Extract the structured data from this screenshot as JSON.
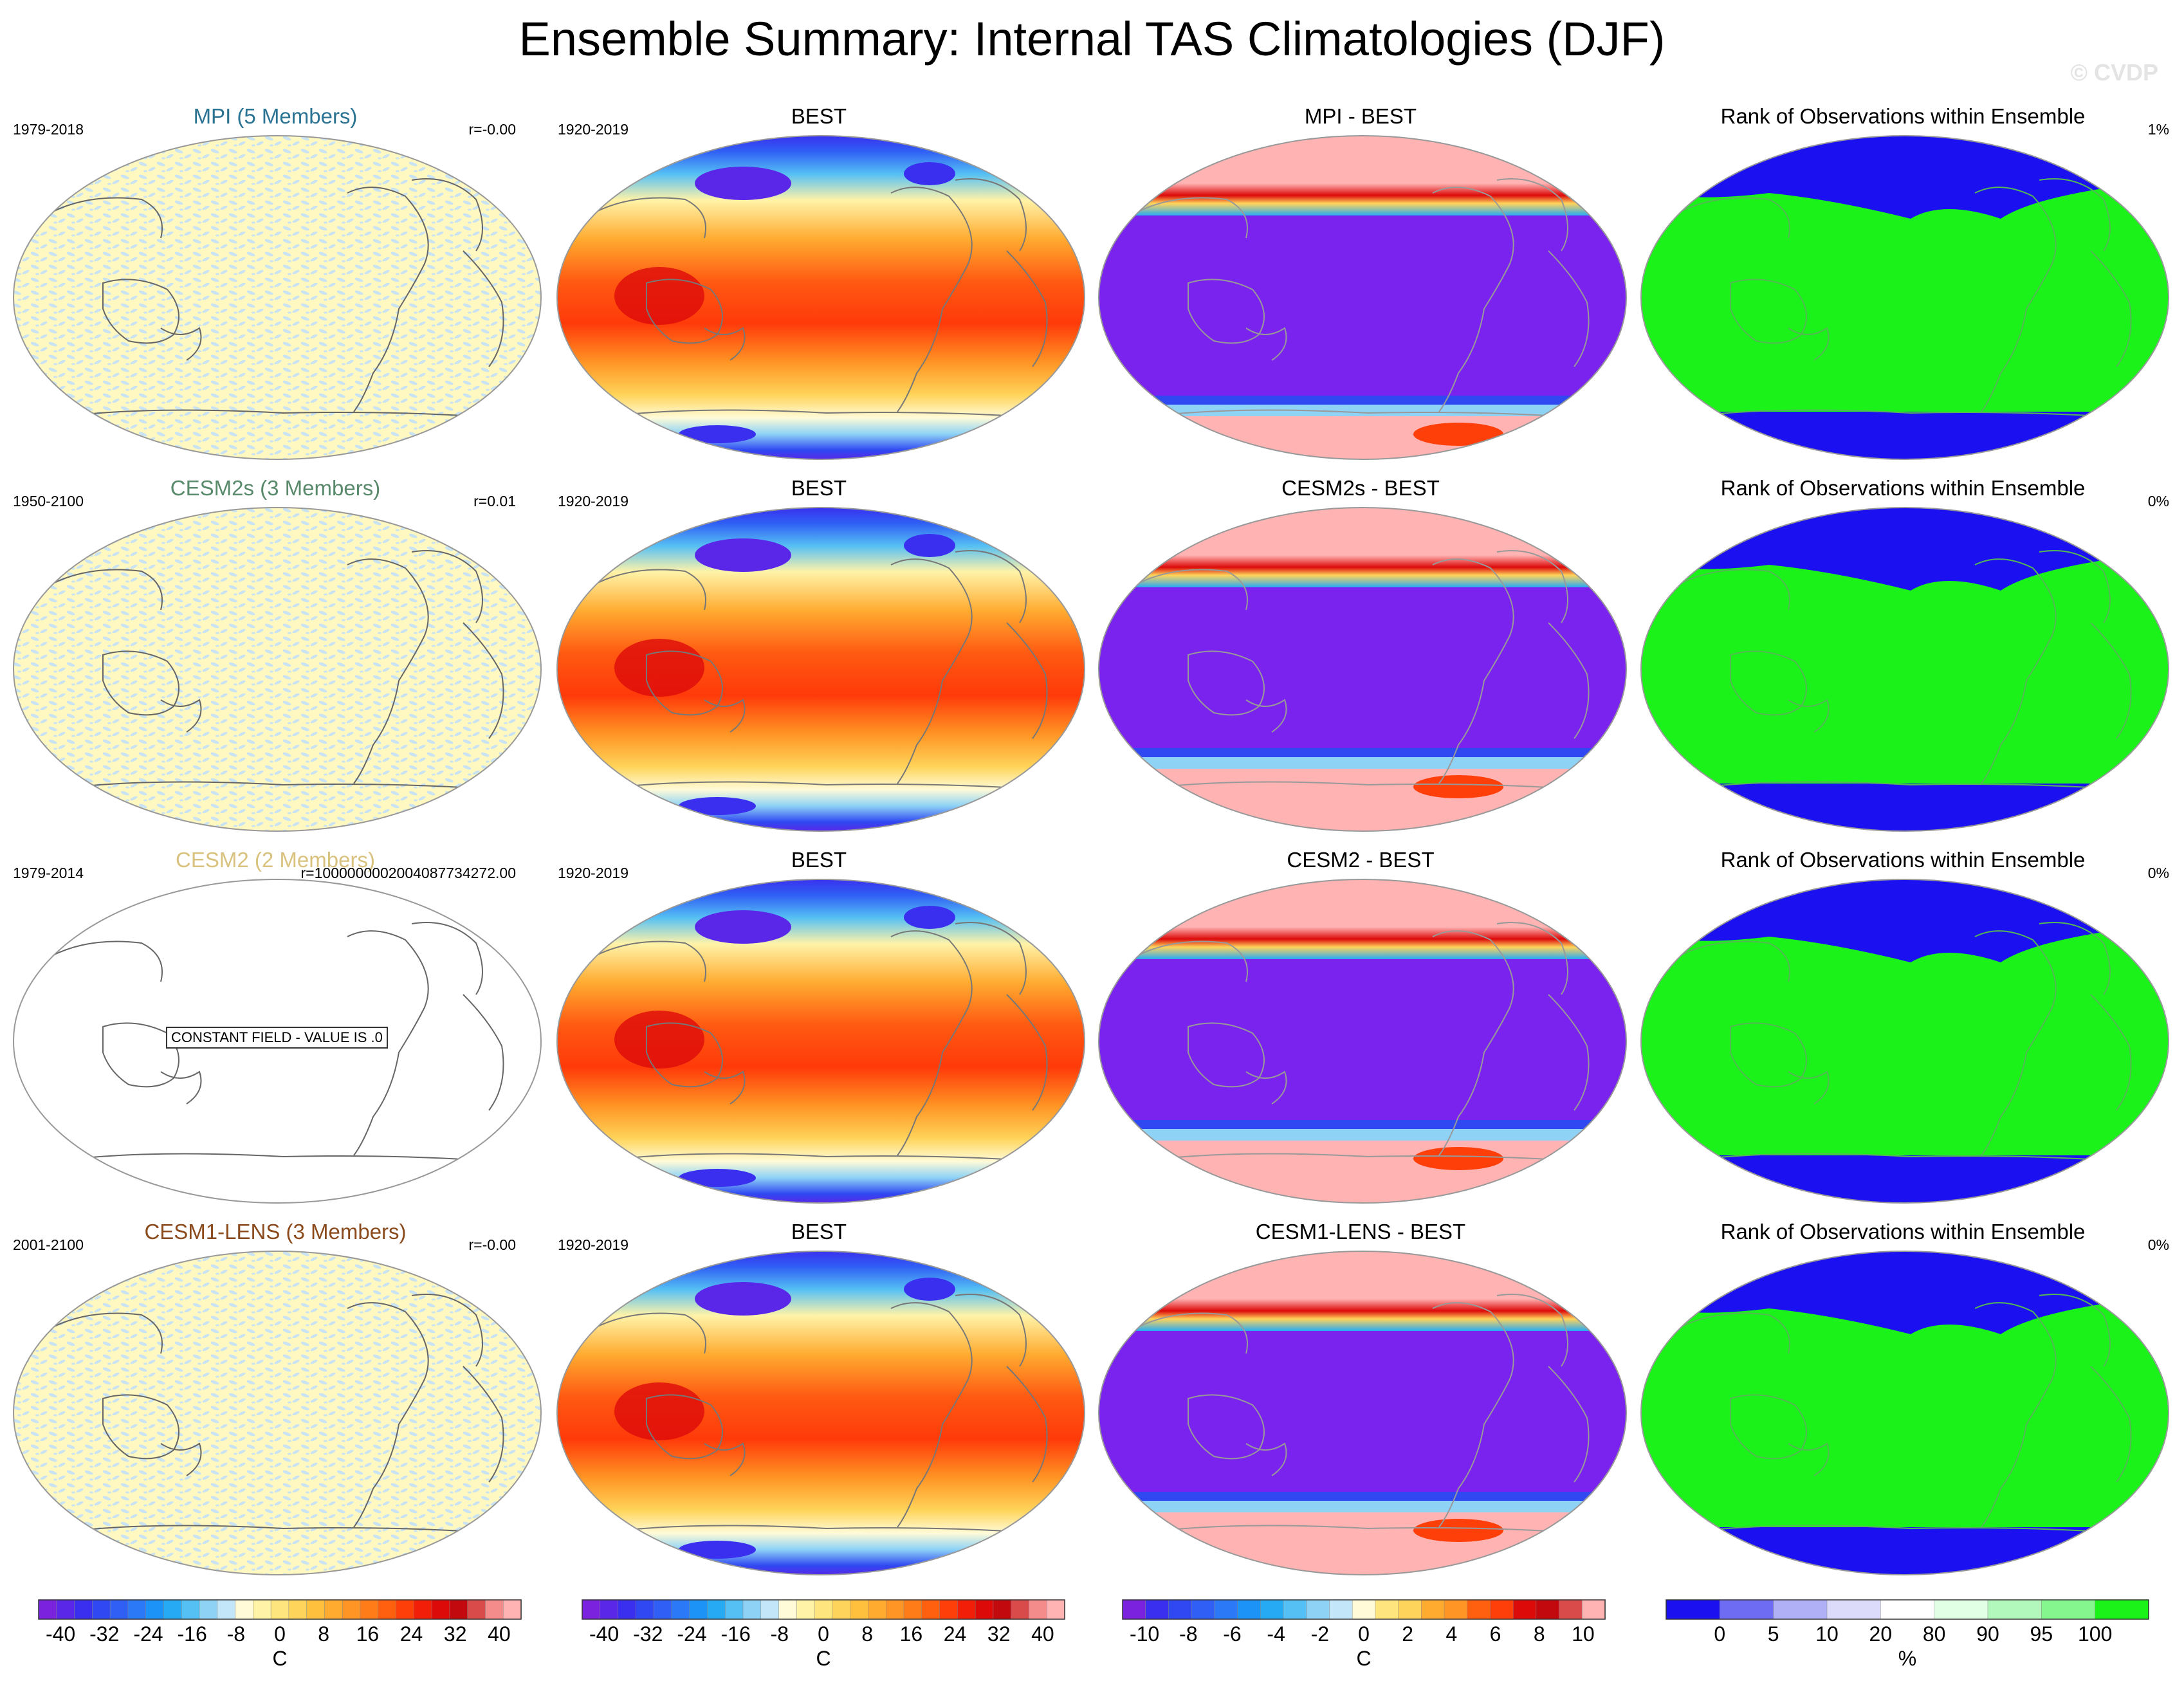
{
  "title": "Ensemble Summary: Internal TAS Climatologies (DJF)",
  "credit": "© CVDP",
  "rows": [
    {
      "model": "MPI (5 Members)",
      "model_color": "#2a7393",
      "years": "1979-2018",
      "r": "r=-0.00",
      "obs": "BEST",
      "obs_years": "1920-2019",
      "diff": "MPI - BEST",
      "rank": "Rank of Observations within Ensemble",
      "rank_pct": "1%",
      "constant": false
    },
    {
      "model": "CESM2s (3 Members)",
      "model_color": "#5a8a6c",
      "years": "1950-2100",
      "r": "r=0.01",
      "obs": "BEST",
      "obs_years": "1920-2019",
      "diff": "CESM2s - BEST",
      "rank": "Rank of Observations within Ensemble",
      "rank_pct": "0%",
      "constant": false
    },
    {
      "model": "CESM2 (2 Members)",
      "model_color": "#d9c27e",
      "years": "1979-2014",
      "r": "r=1000000002004087734272.00",
      "obs": "BEST",
      "obs_years": "1920-2019",
      "diff": "CESM2 - BEST",
      "rank": "Rank of Observations within Ensemble",
      "rank_pct": "0%",
      "constant": true,
      "constant_text": "CONSTANT FIELD - VALUE IS .0"
    },
    {
      "model": "CESM1-LENS (3 Members)",
      "model_color": "#8a4a1c",
      "years": "2001-2100",
      "r": "r=-0.00",
      "obs": "BEST",
      "obs_years": "1920-2019",
      "diff": "CESM1-LENS - BEST",
      "rank": "Rank of Observations within Ensemble",
      "rank_pct": "0%",
      "constant": false
    }
  ],
  "chart_data": [
    {
      "type": "heatmap",
      "name": "internal-climatology-colorbar",
      "unit": "C",
      "ticks": [
        "-40",
        "-32",
        "-24",
        "-16",
        "-8",
        "0",
        "8",
        "16",
        "24",
        "32",
        "40"
      ],
      "colors": [
        "#7a22dd",
        "#5a26e8",
        "#3a2fee",
        "#2f48f2",
        "#2f5ff5",
        "#2c79f7",
        "#1b93f7",
        "#27aaf4",
        "#55c0f4",
        "#8ed3f6",
        "#c3e6f8",
        "#fffbd8",
        "#fff3a8",
        "#ffe57d",
        "#ffd45a",
        "#ffc03e",
        "#ffab30",
        "#ff9524",
        "#ff7c18",
        "#ff6010",
        "#ff3f0a",
        "#f21e08",
        "#dd0a0a",
        "#c20a0e",
        "#d94a4a",
        "#f48c8c",
        "#ffb3b3"
      ]
    },
    {
      "type": "heatmap",
      "name": "observed-climatology-colorbar",
      "unit": "C",
      "ticks": [
        "-40",
        "-32",
        "-24",
        "-16",
        "-8",
        "0",
        "8",
        "16",
        "24",
        "32",
        "40"
      ],
      "colors": [
        "#7a22dd",
        "#5a26e8",
        "#3a2fee",
        "#2f48f2",
        "#2f5ff5",
        "#2c79f7",
        "#1b93f7",
        "#27aaf4",
        "#55c0f4",
        "#8ed3f6",
        "#c3e6f8",
        "#fffbd8",
        "#fff3a8",
        "#ffe57d",
        "#ffd45a",
        "#ffc03e",
        "#ffab30",
        "#ff9524",
        "#ff7c18",
        "#ff6010",
        "#ff3f0a",
        "#f21e08",
        "#dd0a0a",
        "#c20a0e",
        "#d94a4a",
        "#f48c8c",
        "#ffb3b3"
      ]
    },
    {
      "type": "heatmap",
      "name": "difference-colorbar",
      "unit": "C",
      "ticks": [
        "-10",
        "-8",
        "-6",
        "-4",
        "-2",
        "0",
        "2",
        "4",
        "6",
        "8",
        "10"
      ],
      "colors": [
        "#7a22dd",
        "#3a2fee",
        "#2f48f2",
        "#2f5ff5",
        "#2c79f7",
        "#1b93f7",
        "#27aaf4",
        "#55c0f4",
        "#8ed3f6",
        "#c3e6f8",
        "#fffbd8",
        "#ffe57d",
        "#ffd45a",
        "#ffab30",
        "#ff9524",
        "#ff6010",
        "#ff3f0a",
        "#dd0a0a",
        "#c20a0e",
        "#d94a4a",
        "#ffb3b3"
      ]
    },
    {
      "type": "heatmap",
      "name": "rank-colorbar",
      "unit": "%",
      "ticks": [
        "0",
        "5",
        "10",
        "20",
        "80",
        "90",
        "95",
        "100"
      ],
      "colors": [
        "#1a10f0",
        "#6e6cf2",
        "#b0b0f6",
        "#dcdcfa",
        "#ffffff",
        "#e0ffe4",
        "#b2f7bc",
        "#85f58e",
        "#1af21a"
      ]
    }
  ]
}
